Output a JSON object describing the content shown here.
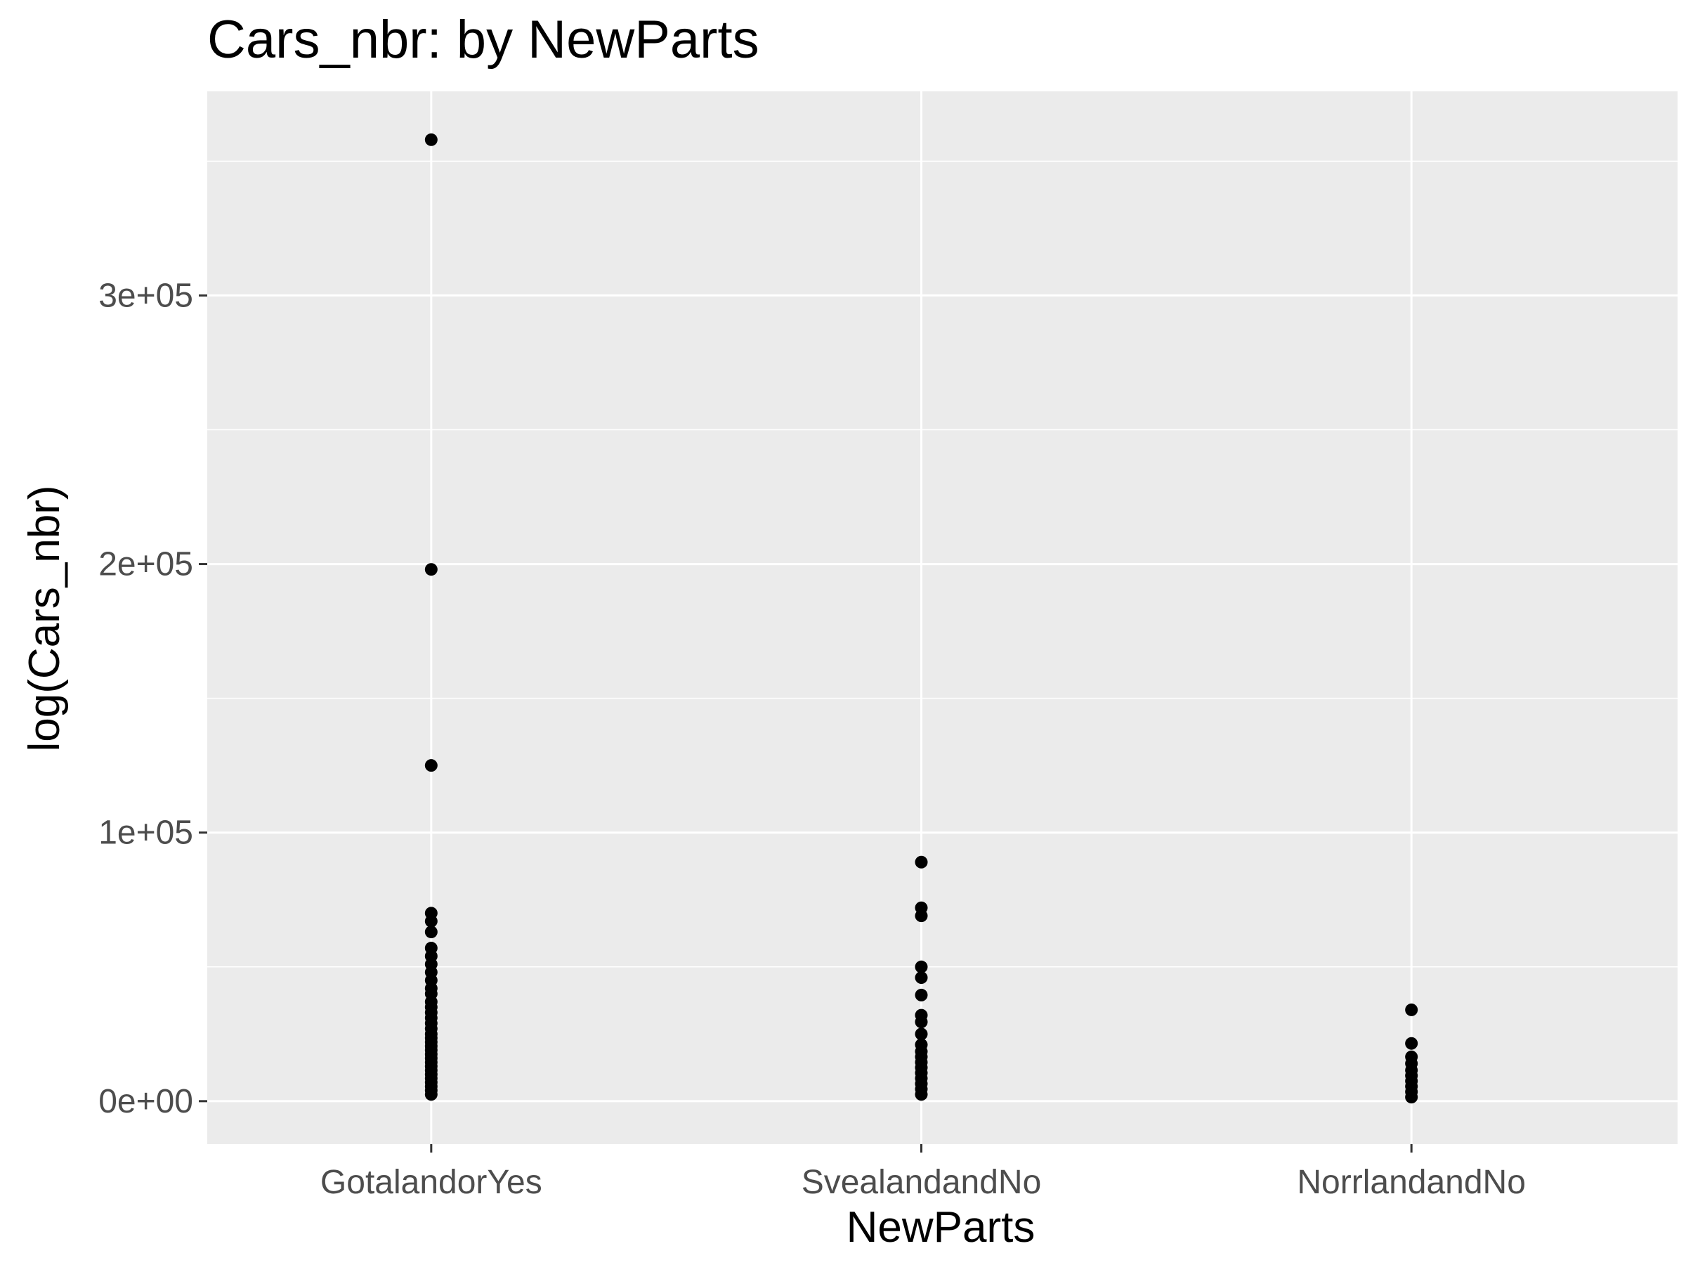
{
  "chart_data": {
    "type": "scatter",
    "title": "Cars_nbr: by NewParts",
    "xlabel": "NewParts",
    "ylabel": "log(Cars_nbr)",
    "categories": [
      "GotalandorYes",
      "SvealandandNo",
      "NorrlandandNo"
    ],
    "ylim": [
      -16000,
      376000
    ],
    "yticks": [
      {
        "value": 0,
        "label": "0e+00"
      },
      {
        "value": 100000,
        "label": "1e+05"
      },
      {
        "value": 200000,
        "label": "2e+05"
      },
      {
        "value": 300000,
        "label": "3e+05"
      }
    ],
    "y_minor_gridlines": [
      50000,
      150000,
      250000,
      350000
    ],
    "grid": true,
    "panel_color": "#ebebeb",
    "grid_color": "#ffffff",
    "point_color": "#000000",
    "series": [
      {
        "category": "GotalandorYes",
        "values": [
          358000,
          198000,
          125000,
          70000,
          67000,
          63000,
          57000,
          54000,
          51000,
          48000,
          45000,
          42000,
          40000,
          37000,
          35000,
          33000,
          31000,
          29000,
          27000,
          25000,
          23500,
          22000,
          20500,
          19000,
          17500,
          16000,
          14500,
          13000,
          11500,
          10000,
          8500,
          7000,
          5500,
          4000,
          2500
        ]
      },
      {
        "category": "SvealandandNo",
        "values": [
          89000,
          72000,
          69000,
          50000,
          46000,
          39500,
          32000,
          29500,
          25000,
          21000,
          18500,
          16500,
          14500,
          12500,
          10500,
          8500,
          6500,
          4500,
          2500
        ]
      },
      {
        "category": "NorrlandandNo",
        "values": [
          34000,
          21500,
          16500,
          14000,
          11500,
          9500,
          7500,
          5500,
          3500,
          1500
        ]
      }
    ]
  }
}
